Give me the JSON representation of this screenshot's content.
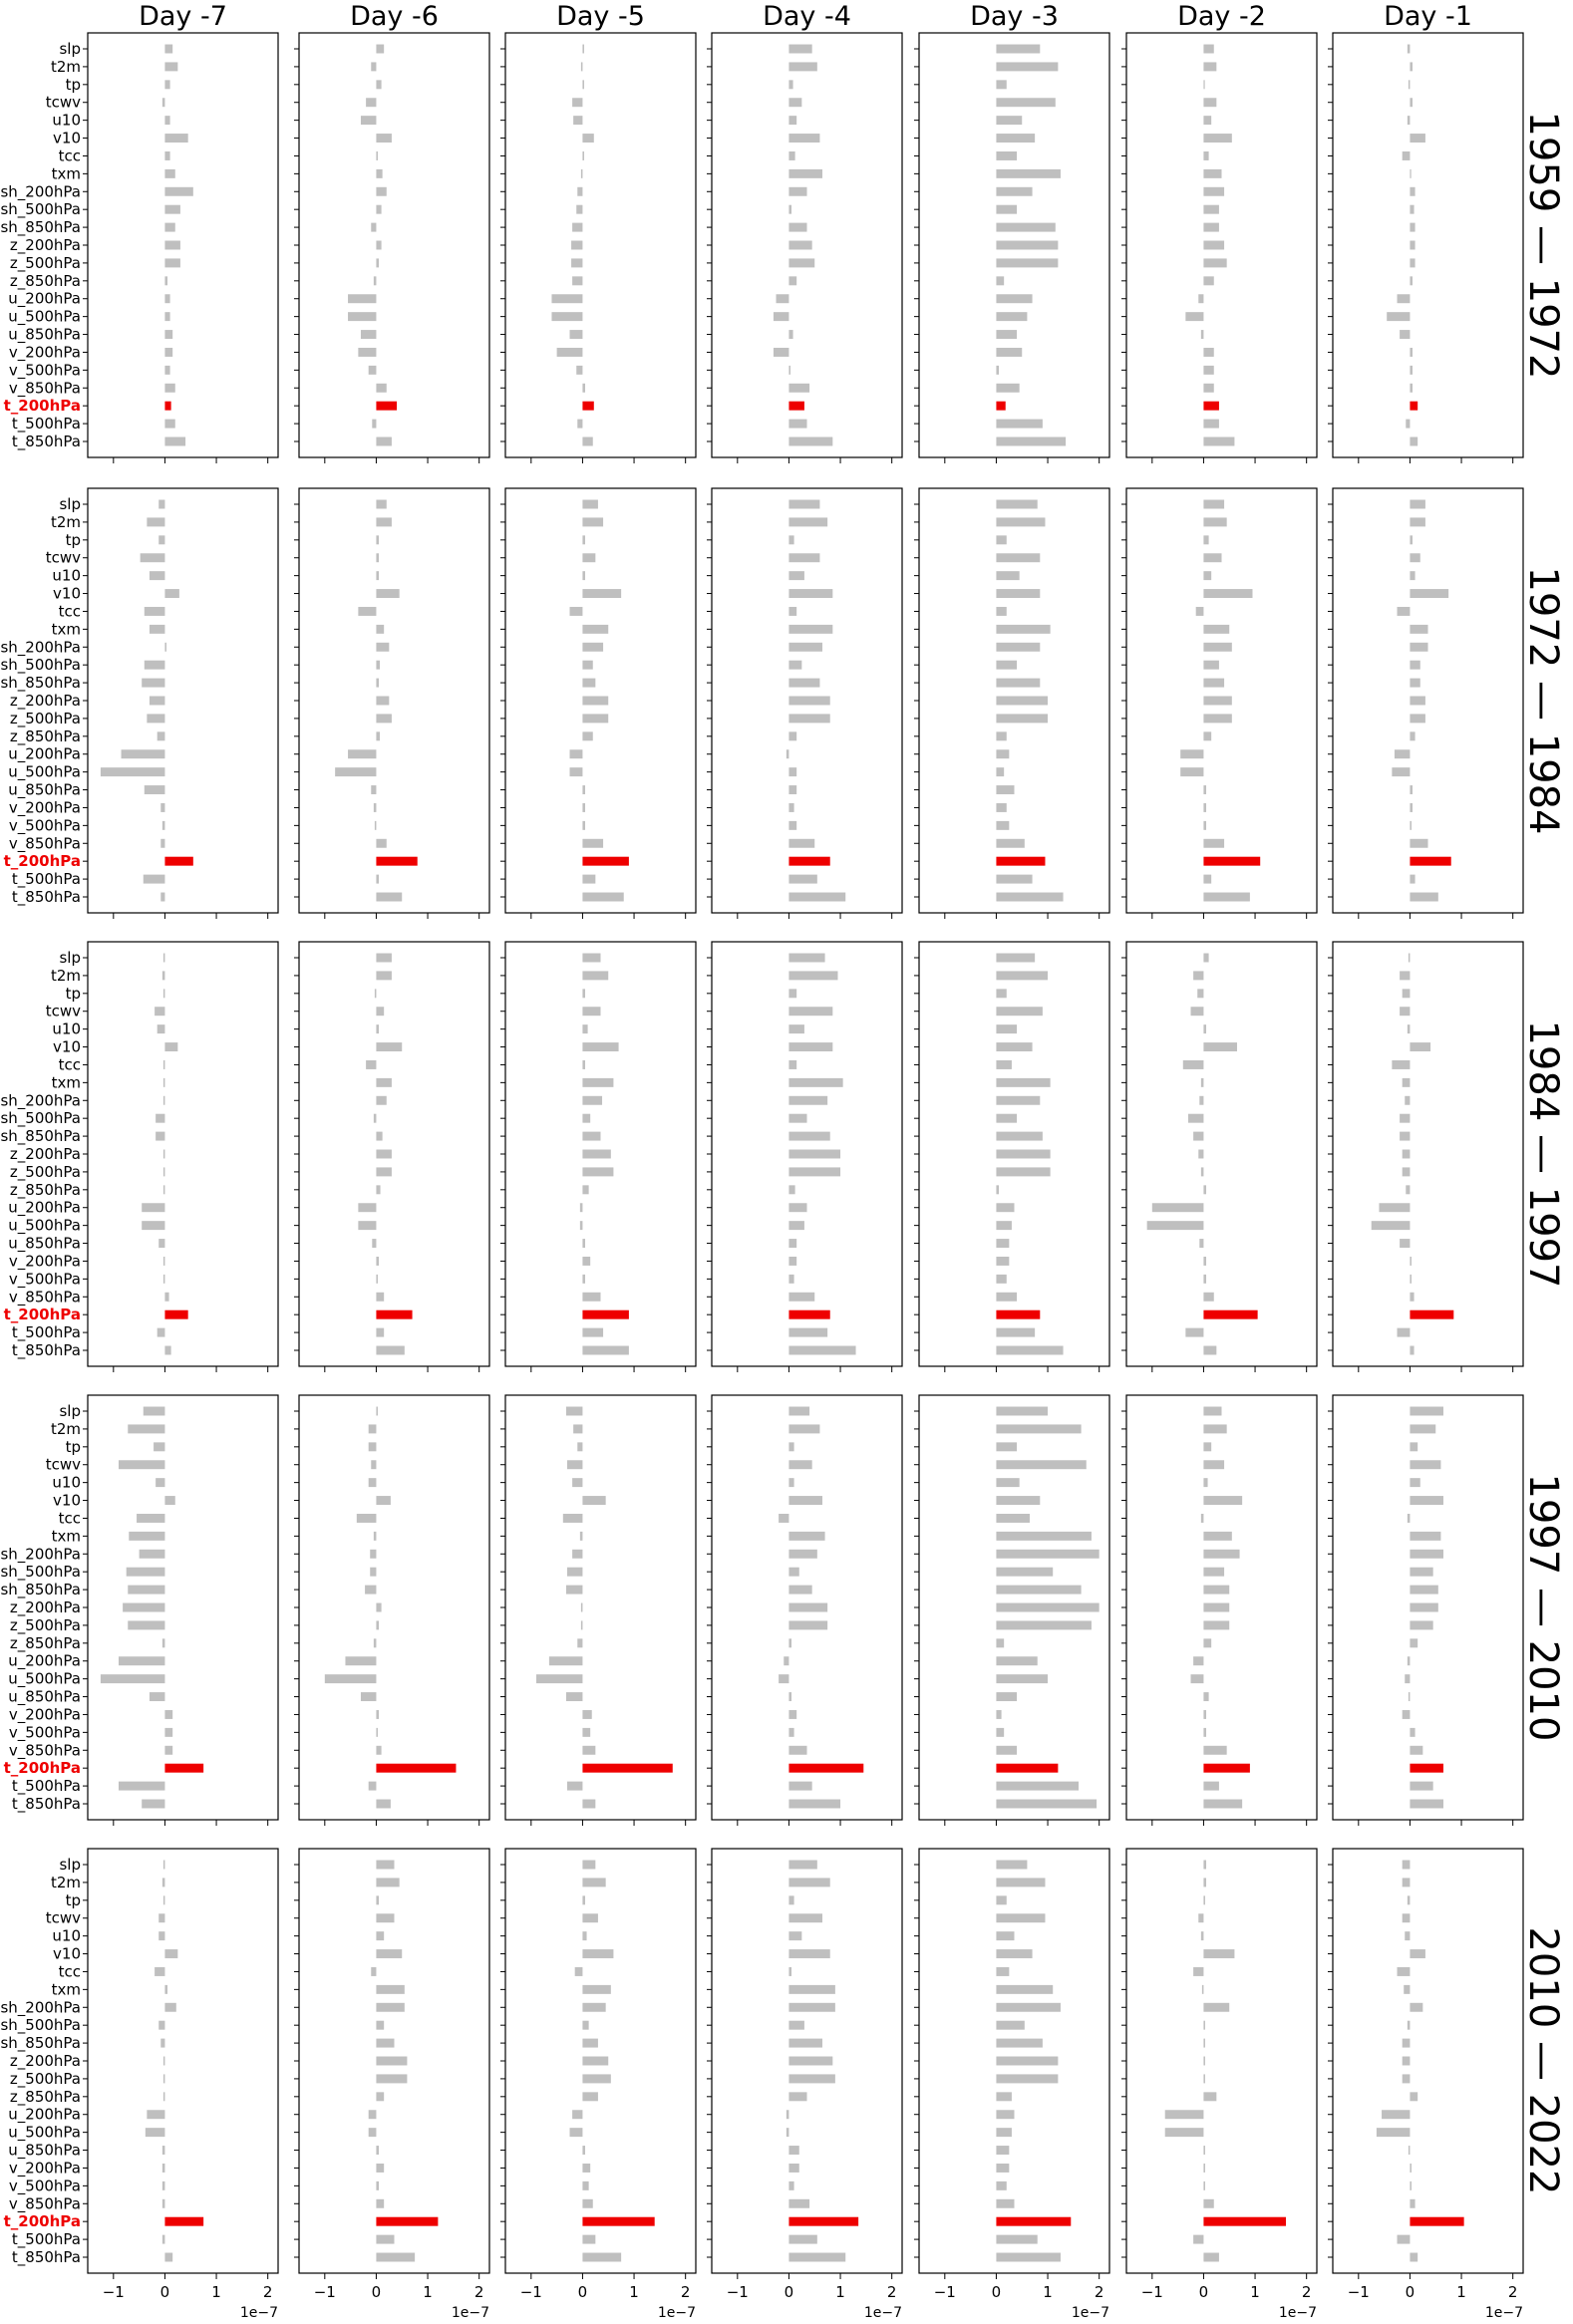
{
  "chart_data": {
    "type": "bar",
    "orientation": "horizontal",
    "column_titles": [
      "Day -7",
      "Day -6",
      "Day -5",
      "Day -4",
      "Day -3",
      "Day -2",
      "Day -1"
    ],
    "row_titles": [
      "1959 — 1972",
      "1972 — 1984",
      "1984 — 1997",
      "1997 — 2010",
      "2010 — 2022"
    ],
    "categories": [
      "slp",
      "t2m",
      "tp",
      "tcwv",
      "u10",
      "v10",
      "tcc",
      "txm",
      "sh_200hPa",
      "sh_500hPa",
      "sh_850hPa",
      "z_200hPa",
      "z_500hPa",
      "z_850hPa",
      "u_200hPa",
      "u_500hPa",
      "u_850hPa",
      "v_200hPa",
      "v_500hPa",
      "v_850hPa",
      "t_200hPa",
      "t_500hPa",
      "t_850hPa"
    ],
    "highlight_category": "t_200hPa",
    "colors": {
      "bar": "#bfbfbf",
      "highlight": "#ee0000"
    },
    "xlim": [
      -1.5,
      2.2
    ],
    "xticks": [
      -1,
      0,
      1,
      2
    ],
    "tick_labels": [
      "−1",
      "0",
      "1",
      "2"
    ],
    "x_offset_label": "1e−7",
    "panels": [
      [
        [
          0.15,
          0.25,
          0.1,
          -0.05,
          0.1,
          0.45,
          0.1,
          0.2,
          0.55,
          0.3,
          0.2,
          0.3,
          0.3,
          0.05,
          0.1,
          0.1,
          0.15,
          0.15,
          0.1,
          0.2,
          0.12,
          0.2,
          0.4
        ],
        [
          0.15,
          -0.1,
          0.1,
          -0.2,
          -0.3,
          0.3,
          0.03,
          0.12,
          0.2,
          0.1,
          -0.1,
          0.1,
          0.05,
          -0.05,
          -0.55,
          -0.55,
          -0.3,
          -0.35,
          -0.15,
          0.2,
          0.4,
          -0.08,
          0.3
        ],
        [
          0.03,
          -0.03,
          0.03,
          -0.2,
          -0.18,
          0.22,
          0.03,
          -0.03,
          -0.1,
          -0.12,
          -0.2,
          -0.22,
          -0.22,
          -0.2,
          -0.6,
          -0.6,
          -0.25,
          -0.5,
          -0.12,
          0.05,
          0.22,
          -0.1,
          0.2
        ],
        [
          0.45,
          0.55,
          0.08,
          0.25,
          0.15,
          0.6,
          0.12,
          0.65,
          0.35,
          0.05,
          0.35,
          0.45,
          0.5,
          0.15,
          -0.25,
          -0.3,
          0.08,
          -0.3,
          0.03,
          0.4,
          0.3,
          0.35,
          0.85
        ],
        [
          0.85,
          1.2,
          0.2,
          1.15,
          0.5,
          0.75,
          0.4,
          1.25,
          0.7,
          0.4,
          1.15,
          1.2,
          1.2,
          0.15,
          0.7,
          0.6,
          0.4,
          0.5,
          0.05,
          0.45,
          0.18,
          0.9,
          1.35
        ],
        [
          0.2,
          0.25,
          0.02,
          0.25,
          0.15,
          0.55,
          0.1,
          0.35,
          0.4,
          0.3,
          0.3,
          0.4,
          0.45,
          0.2,
          -0.1,
          -0.35,
          -0.05,
          0.2,
          0.2,
          0.2,
          0.3,
          0.3,
          0.6
        ],
        [
          -0.05,
          0.05,
          -0.03,
          0.05,
          -0.05,
          0.3,
          -0.15,
          0.02,
          0.1,
          0.08,
          0.1,
          0.1,
          0.1,
          0.05,
          -0.25,
          -0.45,
          -0.2,
          0.05,
          0.05,
          0.05,
          0.15,
          -0.08,
          0.15
        ]
      ],
      [
        [
          -0.12,
          -0.35,
          -0.12,
          -0.48,
          -0.3,
          0.28,
          -0.4,
          -0.3,
          0.03,
          -0.4,
          -0.45,
          -0.3,
          -0.35,
          -0.15,
          -0.85,
          -1.25,
          -0.4,
          -0.08,
          -0.05,
          -0.08,
          0.55,
          -0.42,
          -0.08
        ],
        [
          0.2,
          0.3,
          0.05,
          0.05,
          0.05,
          0.45,
          -0.35,
          0.15,
          0.25,
          0.07,
          0.05,
          0.25,
          0.3,
          0.07,
          -0.55,
          -0.8,
          -0.1,
          -0.05,
          -0.03,
          0.2,
          0.8,
          0.05,
          0.5
        ],
        [
          0.3,
          0.4,
          0.05,
          0.25,
          0.05,
          0.75,
          -0.25,
          0.5,
          0.4,
          0.2,
          0.25,
          0.5,
          0.5,
          0.2,
          -0.25,
          -0.25,
          0.05,
          0.05,
          0.05,
          0.4,
          0.9,
          0.25,
          0.8
        ],
        [
          0.6,
          0.75,
          0.1,
          0.6,
          0.3,
          0.85,
          0.15,
          0.85,
          0.65,
          0.25,
          0.6,
          0.8,
          0.8,
          0.15,
          -0.05,
          0.15,
          0.15,
          0.1,
          0.15,
          0.5,
          0.8,
          0.55,
          1.1
        ],
        [
          0.8,
          0.95,
          0.2,
          0.85,
          0.45,
          0.85,
          0.2,
          1.05,
          0.85,
          0.4,
          0.85,
          1.0,
          1.0,
          0.2,
          0.25,
          0.15,
          0.35,
          0.2,
          0.25,
          0.55,
          0.95,
          0.7,
          1.3
        ],
        [
          0.4,
          0.45,
          0.1,
          0.35,
          0.15,
          0.95,
          -0.15,
          0.5,
          0.55,
          0.3,
          0.4,
          0.55,
          0.55,
          0.15,
          -0.45,
          -0.45,
          0.05,
          0.05,
          0.05,
          0.4,
          1.1,
          0.15,
          0.9
        ],
        [
          0.3,
          0.3,
          0.05,
          0.2,
          0.1,
          0.75,
          -0.25,
          0.35,
          0.35,
          0.2,
          0.2,
          0.3,
          0.3,
          0.1,
          -0.3,
          -0.35,
          0.05,
          0.05,
          0.03,
          0.35,
          0.8,
          0.1,
          0.55
        ]
      ],
      [
        [
          -0.03,
          -0.05,
          -0.03,
          -0.2,
          -0.15,
          0.25,
          -0.03,
          -0.03,
          -0.03,
          -0.18,
          -0.18,
          -0.03,
          -0.03,
          -0.03,
          -0.45,
          -0.45,
          -0.12,
          -0.03,
          -0.03,
          0.08,
          0.45,
          -0.15,
          0.12
        ],
        [
          0.3,
          0.3,
          -0.03,
          0.15,
          0.05,
          0.5,
          -0.2,
          0.3,
          0.2,
          -0.05,
          0.12,
          0.3,
          0.3,
          0.08,
          -0.35,
          -0.35,
          -0.08,
          0.05,
          0.03,
          0.15,
          0.7,
          0.15,
          0.55
        ],
        [
          0.35,
          0.5,
          0.05,
          0.35,
          0.1,
          0.7,
          0.05,
          0.6,
          0.38,
          0.15,
          0.35,
          0.55,
          0.6,
          0.12,
          -0.05,
          -0.05,
          0.05,
          0.15,
          0.05,
          0.35,
          0.9,
          0.4,
          0.9
        ],
        [
          0.7,
          0.95,
          0.15,
          0.85,
          0.3,
          0.85,
          0.15,
          1.05,
          0.75,
          0.35,
          0.8,
          1.0,
          1.0,
          0.12,
          0.35,
          0.3,
          0.15,
          0.15,
          0.1,
          0.5,
          0.8,
          0.75,
          1.3
        ],
        [
          0.75,
          1.0,
          0.2,
          0.9,
          0.4,
          0.7,
          0.3,
          1.05,
          0.85,
          0.4,
          0.9,
          1.05,
          1.05,
          0.05,
          0.35,
          0.3,
          0.25,
          0.25,
          0.2,
          0.4,
          0.85,
          0.75,
          1.3
        ],
        [
          0.1,
          -0.2,
          -0.12,
          -0.25,
          0.05,
          0.65,
          -0.4,
          -0.05,
          -0.08,
          -0.3,
          -0.2,
          -0.1,
          -0.05,
          0.05,
          -1.0,
          -1.1,
          -0.08,
          0.05,
          0.05,
          0.2,
          1.05,
          -0.35,
          0.25
        ],
        [
          -0.03,
          -0.2,
          -0.15,
          -0.2,
          -0.05,
          0.4,
          -0.35,
          -0.15,
          -0.1,
          -0.2,
          -0.2,
          -0.15,
          -0.15,
          -0.08,
          -0.6,
          -0.75,
          -0.2,
          0.03,
          0.03,
          0.08,
          0.85,
          -0.25,
          0.08
        ]
      ],
      [
        [
          -0.42,
          -0.72,
          -0.22,
          -0.9,
          -0.18,
          0.2,
          -0.55,
          -0.7,
          -0.5,
          -0.75,
          -0.72,
          -0.82,
          -0.72,
          -0.05,
          -0.9,
          -1.25,
          -0.3,
          0.15,
          0.15,
          0.15,
          0.75,
          -0.9,
          -0.45
        ],
        [
          0.03,
          -0.15,
          -0.15,
          -0.1,
          -0.15,
          0.28,
          -0.38,
          -0.05,
          -0.12,
          -0.12,
          -0.22,
          0.1,
          0.05,
          -0.05,
          -0.6,
          -1.0,
          -0.3,
          0.05,
          0.03,
          0.1,
          1.55,
          -0.15,
          0.28
        ],
        [
          -0.32,
          -0.18,
          -0.1,
          -0.3,
          -0.2,
          0.45,
          -0.38,
          -0.05,
          -0.2,
          -0.3,
          -0.32,
          -0.03,
          -0.03,
          -0.1,
          -0.65,
          -0.9,
          -0.32,
          0.18,
          0.15,
          0.25,
          1.75,
          -0.3,
          0.25
        ],
        [
          0.4,
          0.6,
          0.1,
          0.45,
          0.1,
          0.65,
          -0.2,
          0.7,
          0.55,
          0.2,
          0.45,
          0.75,
          0.75,
          0.05,
          -0.1,
          -0.2,
          0.05,
          0.15,
          0.1,
          0.35,
          1.45,
          0.45,
          1.0
        ],
        [
          1.0,
          1.65,
          0.4,
          1.75,
          0.45,
          0.85,
          0.65,
          1.85,
          2.0,
          1.1,
          1.65,
          2.0,
          1.85,
          0.15,
          0.8,
          1.0,
          0.4,
          0.1,
          0.15,
          0.4,
          1.2,
          1.6,
          1.95
        ],
        [
          0.35,
          0.45,
          0.15,
          0.4,
          0.08,
          0.75,
          -0.05,
          0.55,
          0.7,
          0.4,
          0.5,
          0.5,
          0.5,
          0.15,
          -0.2,
          -0.25,
          0.1,
          0.05,
          0.05,
          0.45,
          0.9,
          0.3,
          0.75
        ],
        [
          0.65,
          0.5,
          0.15,
          0.6,
          0.2,
          0.65,
          -0.05,
          0.6,
          0.65,
          0.45,
          0.55,
          0.55,
          0.45,
          0.15,
          -0.05,
          -0.1,
          -0.03,
          -0.15,
          0.1,
          0.25,
          0.65,
          0.45,
          0.65
        ]
      ],
      [
        [
          -0.03,
          -0.05,
          -0.03,
          -0.12,
          -0.12,
          0.25,
          -0.2,
          0.05,
          0.22,
          -0.12,
          -0.08,
          -0.03,
          -0.03,
          -0.03,
          -0.35,
          -0.38,
          -0.05,
          -0.05,
          -0.05,
          -0.05,
          0.75,
          -0.05,
          0.15
        ],
        [
          0.35,
          0.45,
          0.05,
          0.35,
          0.15,
          0.5,
          -0.1,
          0.55,
          0.55,
          0.15,
          0.35,
          0.6,
          0.6,
          0.15,
          -0.15,
          -0.15,
          0.05,
          0.15,
          0.05,
          0.15,
          1.2,
          0.35,
          0.75
        ],
        [
          0.25,
          0.45,
          0.05,
          0.3,
          0.08,
          0.6,
          -0.15,
          0.55,
          0.45,
          0.12,
          0.3,
          0.5,
          0.55,
          0.3,
          -0.2,
          -0.25,
          0.05,
          0.15,
          0.12,
          0.2,
          1.4,
          0.25,
          0.75
        ],
        [
          0.55,
          0.8,
          0.1,
          0.65,
          0.25,
          0.8,
          0.05,
          0.9,
          0.9,
          0.3,
          0.65,
          0.85,
          0.9,
          0.35,
          -0.05,
          -0.05,
          0.2,
          0.2,
          0.1,
          0.4,
          1.35,
          0.55,
          1.1
        ],
        [
          0.6,
          0.95,
          0.2,
          0.95,
          0.35,
          0.7,
          0.25,
          1.1,
          1.25,
          0.55,
          0.9,
          1.2,
          1.2,
          0.3,
          0.35,
          0.3,
          0.25,
          0.25,
          0.2,
          0.35,
          1.45,
          0.8,
          1.25
        ],
        [
          0.05,
          0.05,
          0.03,
          -0.1,
          -0.05,
          0.6,
          -0.2,
          -0.03,
          0.5,
          0.03,
          0.03,
          0.03,
          0.03,
          0.25,
          -0.75,
          -0.75,
          0.03,
          0.03,
          0.03,
          0.2,
          1.6,
          -0.2,
          0.3
        ],
        [
          -0.15,
          -0.15,
          -0.05,
          -0.15,
          -0.1,
          0.3,
          -0.25,
          -0.12,
          0.25,
          -0.05,
          -0.15,
          -0.15,
          -0.15,
          0.15,
          -0.55,
          -0.65,
          -0.03,
          0.03,
          0.03,
          0.1,
          1.05,
          -0.25,
          0.15
        ]
      ]
    ]
  }
}
